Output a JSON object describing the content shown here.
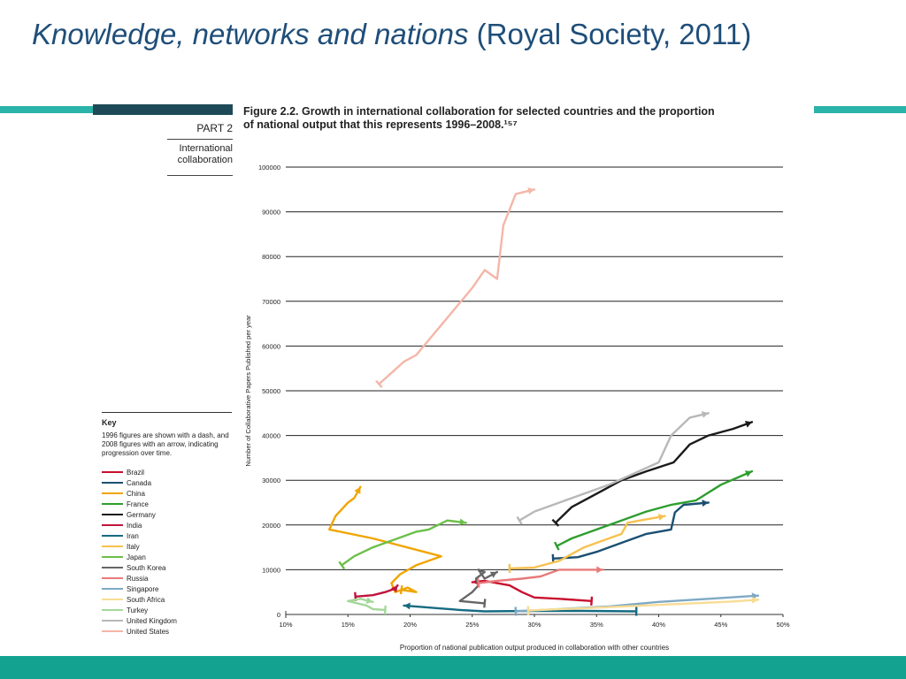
{
  "slide": {
    "title_italic": "Knowledge, networks and nations",
    "title_rest": " (Royal Society, 2011)"
  },
  "panel": {
    "part_label": "PART 2",
    "section_label": "International collaboration",
    "figure_title": "Figure 2.2. Growth in international collaboration for selected countries and the proportion of national output that this represents 1996–2008.¹⁵⁷"
  },
  "key": {
    "title": "Key",
    "note": "1996 figures are shown with a dash, and 2008 figures with an arrow, indicating progression over time.",
    "items": [
      {
        "label": "Brazil",
        "color": "#c8102e"
      },
      {
        "label": "Canada",
        "color": "#1b4f72"
      },
      {
        "label": "China",
        "color": "#f0a500"
      },
      {
        "label": "France",
        "color": "#2e9e2e"
      },
      {
        "label": "Germany",
        "color": "#1a1a1a"
      },
      {
        "label": "India",
        "color": "#c0143c"
      },
      {
        "label": "Iran",
        "color": "#156b82"
      },
      {
        "label": "Italy",
        "color": "#f7c14f"
      },
      {
        "label": "Japan",
        "color": "#6cbf4a"
      },
      {
        "label": "South Korea",
        "color": "#666666"
      },
      {
        "label": "Russia",
        "color": "#e87a7a"
      },
      {
        "label": "Singapore",
        "color": "#7fa9c4"
      },
      {
        "label": "South Africa",
        "color": "#f7dc94"
      },
      {
        "label": "Turkey",
        "color": "#a4d89a"
      },
      {
        "label": "United Kingdom",
        "color": "#b8b8b8"
      },
      {
        "label": "United States",
        "color": "#f4b6a8"
      }
    ]
  },
  "chart_data": {
    "type": "line",
    "title": "Figure 2.2. Growth in international collaboration for selected countries and the proportion of national output that this represents 1996–2008.",
    "xlabel": "Proportion of national publication output produced in collaboration with other countries",
    "ylabel": "Number of Collaborative Papers Published per year",
    "xlim": [
      10,
      50
    ],
    "ylim": [
      0,
      100000
    ],
    "x_ticks": [
      "10%",
      "15%",
      "20%",
      "25%",
      "30%",
      "35%",
      "40%",
      "45%",
      "50%"
    ],
    "y_ticks": [
      "0",
      "10000",
      "20000",
      "30000",
      "40000",
      "50000",
      "60000",
      "70000",
      "80000",
      "90000",
      "100000"
    ],
    "grid": "horizontal",
    "legend": "left",
    "series": [
      {
        "name": "Brazil",
        "color": "#c8102e",
        "points": [
          [
            34.6,
            3000
          ],
          [
            32,
            3500
          ],
          [
            30,
            3800
          ],
          [
            29,
            5000
          ],
          [
            28,
            6500
          ],
          [
            27,
            7000
          ],
          [
            26,
            7500
          ],
          [
            25,
            7200
          ]
        ]
      },
      {
        "name": "Canada",
        "color": "#1b4f72",
        "points": [
          [
            31.5,
            12500
          ],
          [
            33.5,
            12800
          ],
          [
            35,
            14000
          ],
          [
            37,
            16000
          ],
          [
            39,
            18000
          ],
          [
            41,
            19000
          ],
          [
            41.3,
            22800
          ],
          [
            42,
            24500
          ],
          [
            44,
            25000
          ]
        ]
      },
      {
        "name": "China",
        "color": "#f0a500",
        "points": [
          [
            19.3,
            5500
          ],
          [
            20.5,
            5000
          ],
          [
            19.8,
            6000
          ],
          [
            18.8,
            5000
          ],
          [
            18.5,
            7000
          ],
          [
            19.2,
            9000
          ],
          [
            20.5,
            11000
          ],
          [
            22.5,
            13000
          ],
          [
            17,
            17000
          ],
          [
            13.5,
            19000
          ],
          [
            14,
            22000
          ],
          [
            15,
            25000
          ],
          [
            15.5,
            26000
          ],
          [
            16,
            28500
          ]
        ]
      },
      {
        "name": "France",
        "color": "#2e9e2e",
        "points": [
          [
            31.8,
            15300
          ],
          [
            33,
            17000
          ],
          [
            35,
            19000
          ],
          [
            37,
            21000
          ],
          [
            39,
            23000
          ],
          [
            41,
            24500
          ],
          [
            43,
            25500
          ],
          [
            45,
            29000
          ],
          [
            47.5,
            32000
          ]
        ]
      },
      {
        "name": "Germany",
        "color": "#1a1a1a",
        "points": [
          [
            31.7,
            20500
          ],
          [
            33,
            24000
          ],
          [
            35,
            27000
          ],
          [
            37,
            30000
          ],
          [
            39,
            32000
          ],
          [
            41.2,
            34000
          ],
          [
            42.5,
            38000
          ],
          [
            44,
            40000
          ],
          [
            46,
            41500
          ],
          [
            47.5,
            43000
          ]
        ]
      },
      {
        "name": "India",
        "color": "#c0143c",
        "points": [
          [
            15.6,
            4000
          ],
          [
            17,
            4300
          ],
          [
            18,
            5000
          ],
          [
            18.8,
            5800
          ],
          [
            19,
            6500
          ]
        ]
      },
      {
        "name": "Iran",
        "color": "#156b82",
        "points": [
          [
            38.2,
            700
          ],
          [
            34,
            800
          ],
          [
            30,
            800
          ],
          [
            26,
            700
          ],
          [
            24,
            1000
          ],
          [
            19.5,
            2000
          ]
        ]
      },
      {
        "name": "Italy",
        "color": "#f7c14f",
        "points": [
          [
            28,
            10300
          ],
          [
            30,
            10500
          ],
          [
            32,
            12000
          ],
          [
            34,
            15000
          ],
          [
            35,
            16000
          ],
          [
            37,
            18000
          ],
          [
            37.5,
            20500
          ],
          [
            38.5,
            21000
          ],
          [
            40.5,
            22000
          ]
        ]
      },
      {
        "name": "Japan",
        "color": "#6cbf4a",
        "points": [
          [
            14.5,
            11000
          ],
          [
            15.5,
            13000
          ],
          [
            17,
            15000
          ],
          [
            19,
            17000
          ],
          [
            20.5,
            18500
          ],
          [
            21.5,
            19000
          ],
          [
            23,
            21000
          ],
          [
            24.5,
            20500
          ]
        ]
      },
      {
        "name": "South Korea",
        "color": "#666666",
        "points": [
          [
            26,
            2500
          ],
          [
            24,
            3000
          ],
          [
            25,
            5000
          ],
          [
            25.5,
            6500
          ],
          [
            25.3,
            8000
          ],
          [
            26,
            9500
          ],
          [
            25.5,
            10000
          ],
          [
            26,
            8000
          ],
          [
            27,
            9500
          ]
        ]
      },
      {
        "name": "Russia",
        "color": "#e87a7a",
        "points": [
          [
            25.5,
            7000
          ],
          [
            27,
            7500
          ],
          [
            29,
            8000
          ],
          [
            30.5,
            8500
          ],
          [
            32,
            10000
          ],
          [
            34,
            10000
          ],
          [
            35.5,
            10000
          ]
        ]
      },
      {
        "name": "Singapore",
        "color": "#7fa9c4",
        "points": [
          [
            28.5,
            700
          ],
          [
            32,
            1200
          ],
          [
            36,
            1800
          ],
          [
            40,
            2800
          ],
          [
            44,
            3500
          ],
          [
            48,
            4200
          ]
        ]
      },
      {
        "name": "South Africa",
        "color": "#f7dc94",
        "points": [
          [
            29.5,
            900
          ],
          [
            34,
            1400
          ],
          [
            38,
            1900
          ],
          [
            42,
            2400
          ],
          [
            46,
            2900
          ],
          [
            48,
            3300
          ]
        ]
      },
      {
        "name": "Turkey",
        "color": "#a4d89a",
        "points": [
          [
            18,
            1000
          ],
          [
            17,
            1200
          ],
          [
            16.5,
            2000
          ],
          [
            15,
            3000
          ],
          [
            16,
            3500
          ],
          [
            17,
            2800
          ]
        ]
      },
      {
        "name": "United Kingdom",
        "color": "#b8b8b8",
        "points": [
          [
            28.8,
            21000
          ],
          [
            30,
            23000
          ],
          [
            32,
            25000
          ],
          [
            34,
            27000
          ],
          [
            36,
            29000
          ],
          [
            38,
            31500
          ],
          [
            40,
            34000
          ],
          [
            41,
            40000
          ],
          [
            42.5,
            44000
          ],
          [
            44,
            45000
          ]
        ]
      },
      {
        "name": "United States",
        "color": "#f4b6a8",
        "points": [
          [
            17.5,
            51500
          ],
          [
            18.5,
            54000
          ],
          [
            19.5,
            56500
          ],
          [
            20.5,
            58000
          ],
          [
            22,
            63000
          ],
          [
            23.5,
            68000
          ],
          [
            25,
            73000
          ],
          [
            26,
            77000
          ],
          [
            27,
            75000
          ],
          [
            27.5,
            87000
          ],
          [
            28.5,
            94000
          ],
          [
            30,
            95000
          ]
        ]
      }
    ]
  }
}
